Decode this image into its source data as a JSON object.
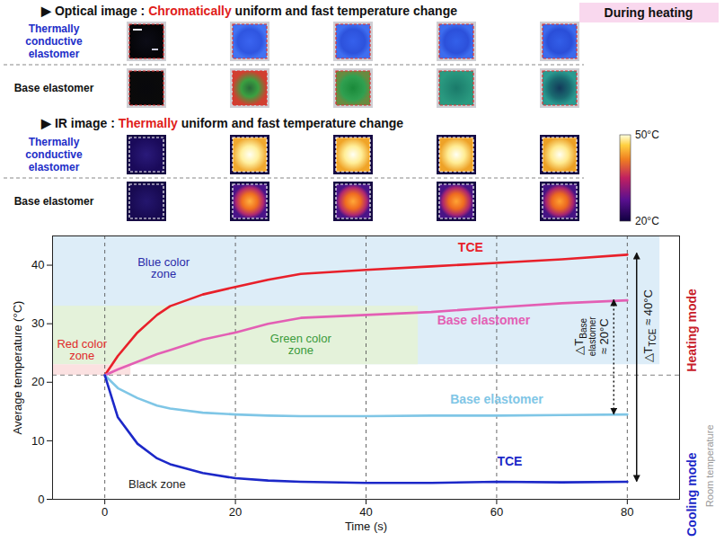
{
  "optical_image": {
    "title": "▶ Optical image : Chromatically uniform and fast temperature change",
    "emphasis": "Chromatically",
    "badge": "During heating",
    "rows": [
      "Thermally conductive elastomer",
      "Base elastomer"
    ]
  },
  "ir_image": {
    "title": "▶ IR image : Thermally uniform and fast temperature change",
    "emphasis": "Thermally",
    "rows": [
      "Thermally conductive elastomer",
      "Base elastomer"
    ],
    "colorbar": {
      "range": [
        20,
        50
      ],
      "ticks": [
        {
          "value": 50,
          "label": "50°C"
        },
        {
          "value": 20,
          "label": "20°C"
        }
      ]
    }
  },
  "chart_data": {
    "type": "line",
    "xlabel": "Time (s)",
    "ylabel": "Average temperature (°C)",
    "xlim": [
      -8,
      88
    ],
    "ylim": [
      0,
      45
    ],
    "xticks": [
      0,
      20,
      40,
      60,
      80
    ],
    "yticks": [
      0,
      10,
      20,
      30,
      40
    ],
    "grid": "x",
    "x": [
      0,
      2,
      5,
      8,
      10,
      15,
      20,
      25,
      30,
      40,
      50,
      60,
      70,
      80
    ],
    "series": [
      {
        "name": "TCE",
        "color": "#e8202a",
        "values": [
          21.2,
          24.5,
          28.5,
          31.5,
          33,
          35,
          36.3,
          37.5,
          38.5,
          39.2,
          39.8,
          40.4,
          41,
          41.8
        ],
        "label_at": [
          56,
          43
        ]
      },
      {
        "name": "Base elastomer",
        "color": "#e35fb4",
        "values": [
          21.2,
          22.2,
          23.5,
          24.8,
          25.5,
          27.3,
          28.5,
          30,
          31,
          31.5,
          32,
          32.8,
          33.5,
          34
        ],
        "label_at": [
          58,
          30.5
        ]
      },
      {
        "name": "Base elastomer",
        "color": "#7fc6e6",
        "values": [
          21.2,
          19,
          17.3,
          16,
          15.5,
          14.8,
          14.5,
          14.3,
          14.2,
          14.2,
          14.3,
          14.3,
          14.4,
          14.5
        ],
        "label_at": [
          60,
          17
        ]
      },
      {
        "name": "TCE",
        "color": "#1c28c8",
        "values": [
          21.2,
          14,
          9.5,
          7,
          6,
          4.5,
          3.6,
          3.2,
          3,
          2.8,
          2.8,
          3,
          2.9,
          3
        ],
        "label_at": [
          62,
          6.5
        ]
      }
    ],
    "zones": [
      {
        "x": [
          -8,
          85
        ],
        "y": [
          23,
          45
        ],
        "color": "#ddedf8"
      },
      {
        "x": [
          -8,
          48
        ],
        "y": [
          23,
          33
        ],
        "color": "#e4f2da"
      },
      {
        "x": [
          -8,
          4
        ],
        "y": [
          21.2,
          23
        ],
        "color": "#fbe1e1"
      }
    ],
    "annotations": [
      {
        "text": "Blue color zone",
        "x": 9,
        "y": 39.5,
        "color": "#2a2aa8"
      },
      {
        "text": "Green color zone",
        "x": 30,
        "y": 26.5,
        "color": "#3a9a3a"
      },
      {
        "text": "Red color zone",
        "x": -3.5,
        "y": 25.5,
        "color": "#e02a2a"
      },
      {
        "text": "Black zone",
        "x": 8,
        "y": 2.5,
        "color": "#222222"
      }
    ],
    "reference_lines": [
      {
        "y": 21.2,
        "label": "Room temperature"
      }
    ],
    "side_labels": [
      {
        "text": "Heating mode",
        "y": 36,
        "color": "#c8202a"
      },
      {
        "text": "Cooling mode",
        "y": 8,
        "color": "#1c28c8"
      }
    ],
    "deltas": [
      {
        "symbol": "△T",
        "subscript": "Base elastomer",
        "text": "≈ 20°C",
        "x": 78,
        "y": [
          14.5,
          34
        ],
        "line_style": "dotted"
      },
      {
        "symbol": "△T",
        "subscript": "TCE",
        "text": "≈ 40°C",
        "x": 81.5,
        "y": [
          3,
          42
        ],
        "line_style": "solid"
      }
    ]
  }
}
